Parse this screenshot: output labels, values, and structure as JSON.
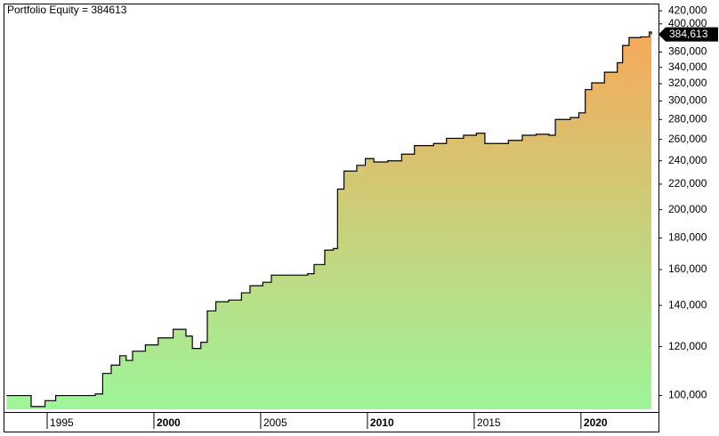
{
  "chart_data": {
    "type": "line",
    "title": "Portfolio Equity = 384613",
    "scale": "log",
    "step": true,
    "end_label": "384,613",
    "x": [
      1993.1,
      1993.7,
      1994.25,
      1994.9,
      1995.4,
      1996.5,
      1997.25,
      1997.6,
      1998.0,
      1998.4,
      1998.7,
      1999.0,
      1999.6,
      2000.2,
      2000.9,
      2001.5,
      2001.8,
      2002.2,
      2002.5,
      2002.9,
      2003.5,
      2004.1,
      2004.5,
      2005.1,
      2005.5,
      2006.4,
      2007.2,
      2007.5,
      2008.0,
      2008.4,
      2008.6,
      2008.9,
      2009.5,
      2009.9,
      2010.3,
      2010.95,
      2011.6,
      2012.2,
      2013.1,
      2013.7,
      2014.5,
      2015.1,
      2015.5,
      2016.0,
      2016.6,
      2017.25,
      2017.9,
      2018.5,
      2018.8,
      2019.5,
      2019.9,
      2020.2,
      2020.5,
      2021.1,
      2021.7,
      2021.95,
      2022.25,
      2022.8,
      2023.2,
      2023.3
    ],
    "series": [
      {
        "name": "Portfolio Equity",
        "color": "#000000",
        "fill_top": "#f6a95a",
        "fill_bottom": "#9ef59a",
        "values": [
          100000,
          100000,
          96000,
          98100,
          100000,
          100000,
          100600,
          108600,
          112000,
          116000,
          114000,
          118000,
          120800,
          124000,
          128000,
          124800,
          119200,
          122000,
          137100,
          141900,
          142800,
          146700,
          150600,
          152600,
          156700,
          156700,
          157500,
          163000,
          172000,
          173000,
          216000,
          231000,
          236000,
          242000,
          239000,
          240000,
          246000,
          254000,
          256000,
          261000,
          264000,
          266000,
          256000,
          256000,
          259000,
          264000,
          265000,
          264000,
          280000,
          282000,
          287000,
          313000,
          321000,
          334000,
          346000,
          369000,
          380000,
          381000,
          388000,
          384613
        ]
      }
    ],
    "xlim": [
      1993.0,
      2023.63
    ],
    "xticks": [
      1995,
      2000,
      2005,
      2010,
      2015,
      2020
    ],
    "bold_xticks": [
      2000,
      2010,
      2020
    ],
    "ylim": [
      95000,
      430000
    ],
    "yticks": [
      {
        "value": 100000,
        "label": "100,000"
      },
      {
        "value": 120000,
        "label": "120,000"
      },
      {
        "value": 140000,
        "label": "140,000"
      },
      {
        "value": 160000,
        "label": "160,000"
      },
      {
        "value": 180000,
        "label": "180,000"
      },
      {
        "value": 200000,
        "label": "200,000"
      },
      {
        "value": 220000,
        "label": "220,000"
      },
      {
        "value": 240000,
        "label": "240,000"
      },
      {
        "value": 260000,
        "label": "260,000"
      },
      {
        "value": 280000,
        "label": "280,000"
      },
      {
        "value": 300000,
        "label": "300,000"
      },
      {
        "value": 320000,
        "label": "320,000"
      },
      {
        "value": 340000,
        "label": "340,000"
      },
      {
        "value": 360000,
        "label": "360,000"
      },
      {
        "value": 400000,
        "label": "400,000"
      },
      {
        "value": 420000,
        "label": "420,000"
      }
    ]
  }
}
